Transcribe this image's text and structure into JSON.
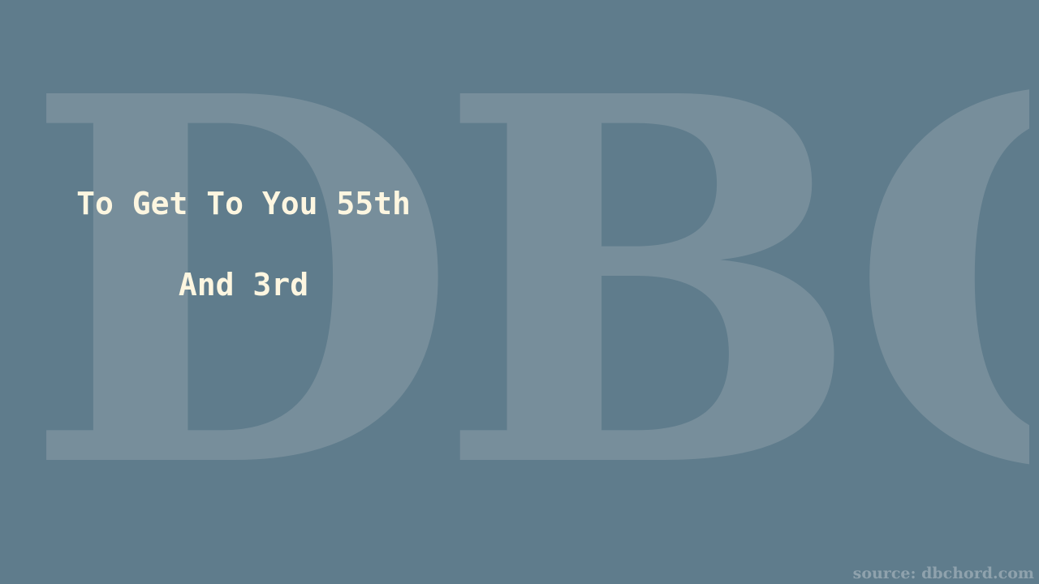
{
  "watermark": {
    "text": "DBC"
  },
  "lyrics": {
    "line1": "To Get To You 55th",
    "line2": "And 3rd"
  },
  "footer": {
    "source": "source: dbchord.com"
  },
  "colors": {
    "background": "#5f7c8c",
    "watermark": "#778e9b",
    "lyric_text": "#fdf6e0",
    "source_text": "#8fa2ad"
  }
}
